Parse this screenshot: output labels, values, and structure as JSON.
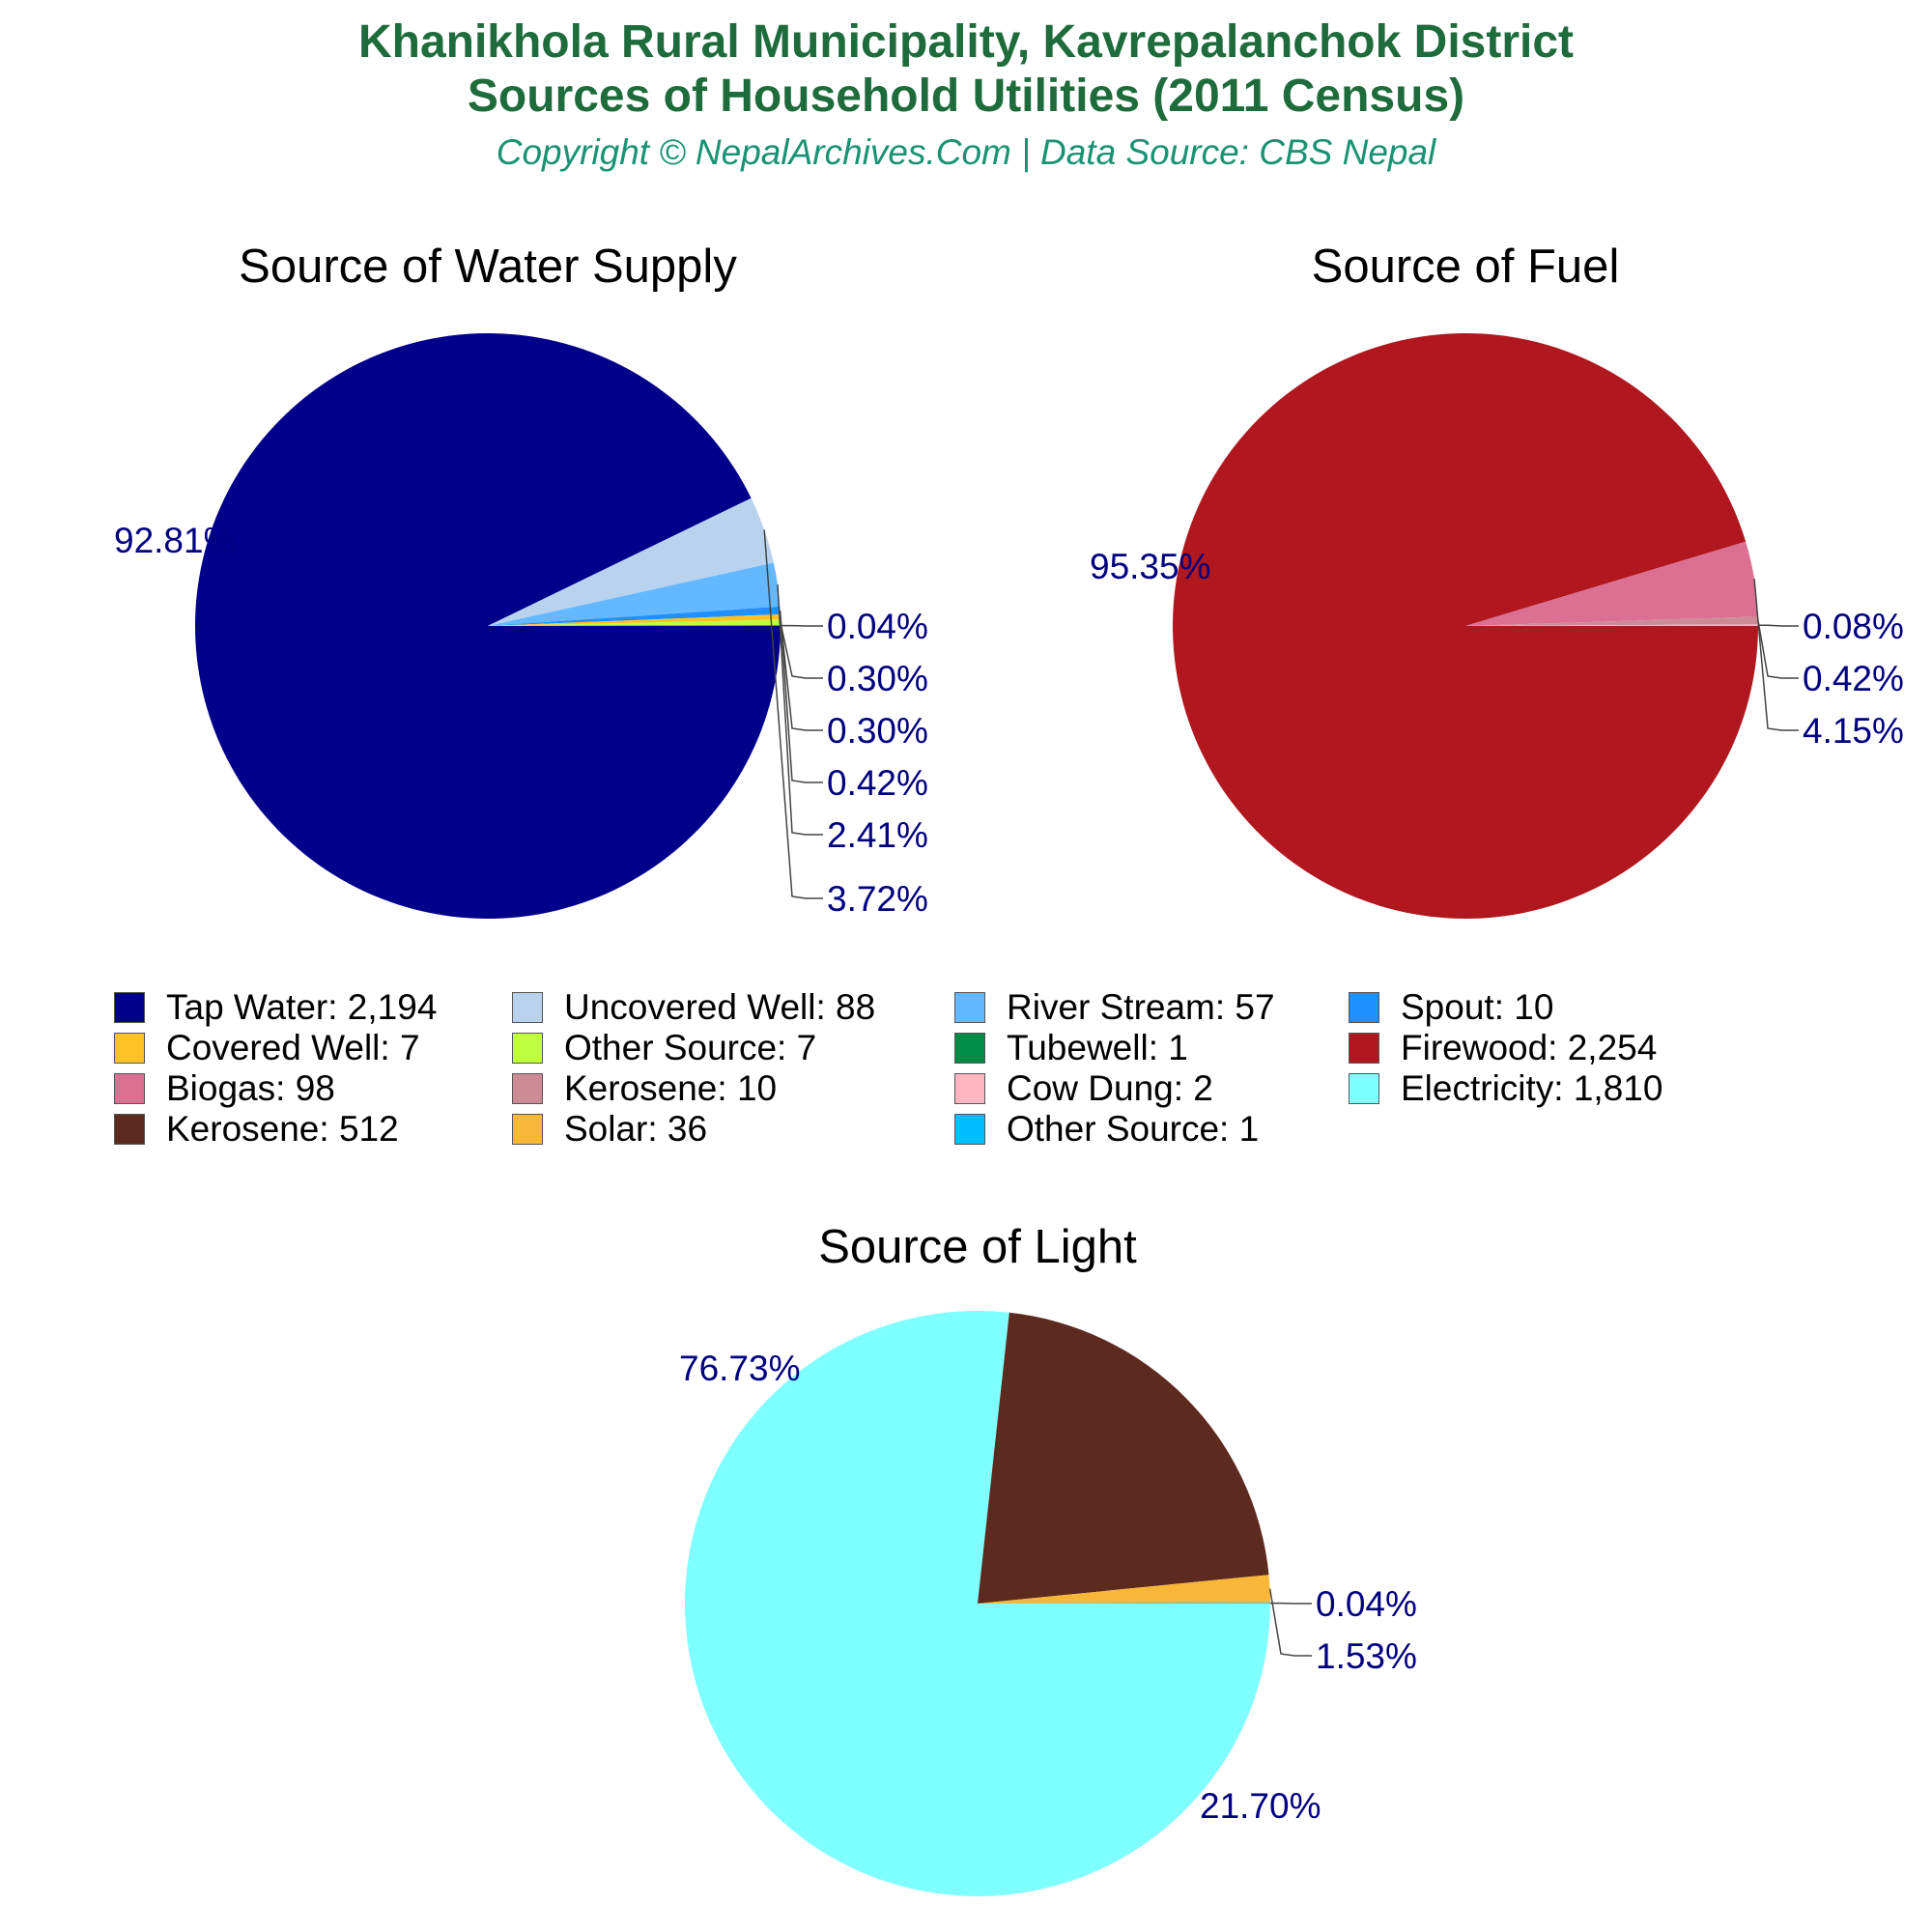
{
  "title_line1": "Khanikhola Rural Municipality, Kavrepalanchok District",
  "title_line2": "Sources of Household Utilities (2011 Census)",
  "subtitle": "Copyright © NepalArchives.Com | Data Source: CBS Nepal",
  "label_color": "#000080",
  "chart_data": [
    {
      "type": "pie",
      "title": "Source of Water Supply",
      "slices": [
        {
          "label": "Tap Water",
          "value": 2194,
          "percent_label": "92.81%",
          "color": "#00008b"
        },
        {
          "label": "Uncovered Well",
          "value": 88,
          "percent_label": "3.72%",
          "color": "#b9d3ee"
        },
        {
          "label": "River Stream",
          "value": 57,
          "percent_label": "2.41%",
          "color": "#63b8ff"
        },
        {
          "label": "Spout",
          "value": 10,
          "percent_label": "0.42%",
          "color": "#1e90ff"
        },
        {
          "label": "Covered Well",
          "value": 7,
          "percent_label": "0.30%",
          "color": "#ffc125"
        },
        {
          "label": "Other Source",
          "value": 7,
          "percent_label": "0.30%",
          "color": "#c0ff3e"
        },
        {
          "label": "Tubewell",
          "value": 1,
          "percent_label": "0.04%",
          "color": "#008b45"
        }
      ]
    },
    {
      "type": "pie",
      "title": "Source of Fuel",
      "slices": [
        {
          "label": "Firewood",
          "value": 2254,
          "percent_label": "95.35%",
          "color": "#b0171f"
        },
        {
          "label": "Biogas",
          "value": 98,
          "percent_label": "4.15%",
          "color": "#db7093"
        },
        {
          "label": "Kerosene",
          "value": 10,
          "percent_label": "0.42%",
          "color": "#cd8c95"
        },
        {
          "label": "Cow Dung",
          "value": 2,
          "percent_label": "0.08%",
          "color": "#ffb6c1"
        }
      ]
    },
    {
      "type": "pie",
      "title": "Source of Light",
      "slices": [
        {
          "label": "Electricity",
          "value": 1810,
          "percent_label": "76.73%",
          "color": "#7fffff"
        },
        {
          "label": "Kerosene",
          "value": 512,
          "percent_label": "21.70%",
          "color": "#5c2a1f"
        },
        {
          "label": "Solar",
          "value": 36,
          "percent_label": "1.53%",
          "color": "#f8b738"
        },
        {
          "label": "Other Source",
          "value": 1,
          "percent_label": "0.04%",
          "color": "#00bfff"
        }
      ]
    }
  ],
  "legend": [
    {
      "text": "Tap Water: 2,194",
      "color": "#00008b"
    },
    {
      "text": "Uncovered Well: 88",
      "color": "#b9d3ee"
    },
    {
      "text": "River Stream: 57",
      "color": "#63b8ff"
    },
    {
      "text": "Spout: 10",
      "color": "#1e90ff"
    },
    {
      "text": "Covered Well: 7",
      "color": "#ffc125"
    },
    {
      "text": "Other Source: 7",
      "color": "#c0ff3e"
    },
    {
      "text": "Tubewell: 1",
      "color": "#008b45"
    },
    {
      "text": "Firewood: 2,254",
      "color": "#b0171f"
    },
    {
      "text": "Biogas: 98",
      "color": "#db7093"
    },
    {
      "text": "Kerosene: 10",
      "color": "#cd8c95"
    },
    {
      "text": "Cow Dung: 2",
      "color": "#ffb6c1"
    },
    {
      "text": "Electricity: 1,810",
      "color": "#7fffff"
    },
    {
      "text": "Kerosene: 512",
      "color": "#5c2a1f"
    },
    {
      "text": "Solar: 36",
      "color": "#f8b738"
    },
    {
      "text": "Other Source: 1",
      "color": "#00bfff"
    }
  ]
}
